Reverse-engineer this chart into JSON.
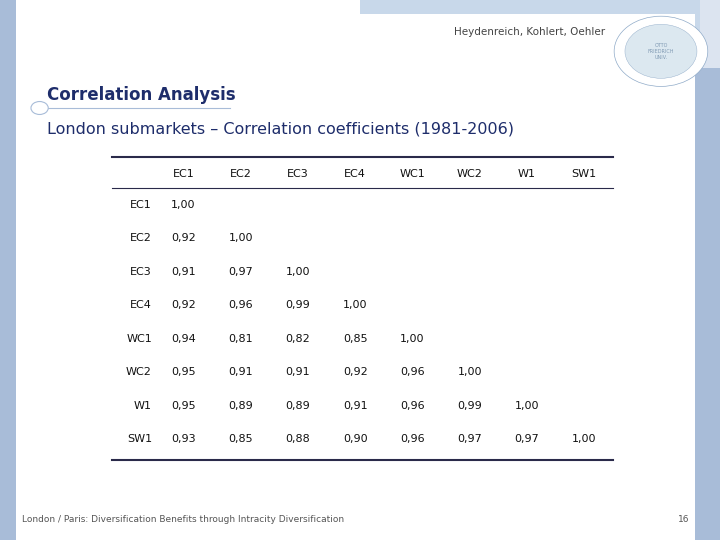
{
  "header_text": "Heydenreich, Kohlert, Oehler",
  "title": "Correlation Analysis",
  "subtitle": "London submarkets – Correlation coefficients (1981-2006)",
  "footer_text": "London / Paris: Diversification Benefits through Intracity Diversification",
  "page_number": "16",
  "col_headers": [
    "EC1",
    "EC2",
    "EC3",
    "EC4",
    "WC1",
    "WC2",
    "W1",
    "SW1"
  ],
  "row_headers": [
    "EC1",
    "EC2",
    "EC3",
    "EC4",
    "WC1",
    "WC2",
    "W1",
    "SW1"
  ],
  "table_data": [
    [
      "1,00",
      "",
      "",
      "",
      "",
      "",
      "",
      ""
    ],
    [
      "0,92",
      "1,00",
      "",
      "",
      "",
      "",
      "",
      ""
    ],
    [
      "0,91",
      "0,97",
      "1,00",
      "",
      "",
      "",
      "",
      ""
    ],
    [
      "0,92",
      "0,96",
      "0,99",
      "1,00",
      "",
      "",
      "",
      ""
    ],
    [
      "0,94",
      "0,81",
      "0,82",
      "0,85",
      "1,00",
      "",
      "",
      ""
    ],
    [
      "0,95",
      "0,91",
      "0,91",
      "0,92",
      "0,96",
      "1,00",
      "",
      ""
    ],
    [
      "0,95",
      "0,89",
      "0,89",
      "0,91",
      "0,96",
      "0,99",
      "1,00",
      ""
    ],
    [
      "0,93",
      "0,85",
      "0,88",
      "0,90",
      "0,96",
      "0,97",
      "0,97",
      "1,00"
    ]
  ],
  "bg_color": "#dce4f0",
  "slide_bg": "#ffffff",
  "title_color": "#1e2d6b",
  "subtitle_color": "#1e2d6b",
  "header_color": "#444444",
  "table_text_color": "#111111",
  "row_header_color": "#111111",
  "col_header_color": "#111111",
  "footer_color": "#555555",
  "line_color": "#2a2a4a",
  "top_bar_color": "#6a8cbe",
  "right_bar_color": "#a8bcd8",
  "left_bar_color": "#a8bcd8"
}
